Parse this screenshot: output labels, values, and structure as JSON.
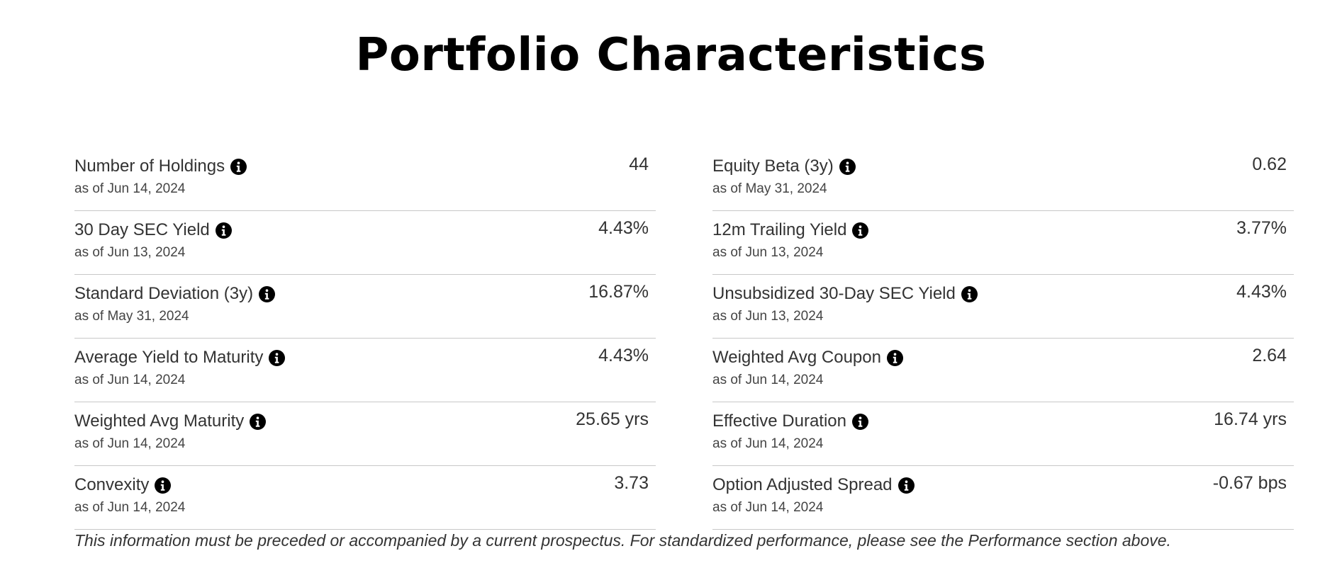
{
  "title": "Portfolio Characteristics",
  "info_icon": "info-circle-icon",
  "left": [
    {
      "label": "Number of Holdings",
      "date": "as of Jun 14, 2024",
      "value": "44"
    },
    {
      "label": "30 Day SEC Yield",
      "date": "as of Jun 13, 2024",
      "value": "4.43%"
    },
    {
      "label": "Standard Deviation (3y)",
      "date": "as of May 31, 2024",
      "value": "16.87%"
    },
    {
      "label": "Average Yield to Maturity",
      "date": "as of Jun 14, 2024",
      "value": "4.43%"
    },
    {
      "label": "Weighted Avg Maturity",
      "date": "as of Jun 14, 2024",
      "value": "25.65 yrs"
    },
    {
      "label": "Convexity",
      "date": "as of Jun 14, 2024",
      "value": "3.73"
    }
  ],
  "right": [
    {
      "label": "Equity Beta (3y)",
      "date": "as of May 31, 2024",
      "value": "0.62"
    },
    {
      "label": "12m Trailing Yield",
      "date": "as of Jun 13, 2024",
      "value": "3.77%"
    },
    {
      "label": "Unsubsidized 30-Day SEC Yield",
      "date": "as of Jun 13, 2024",
      "value": "4.43%"
    },
    {
      "label": "Weighted Avg Coupon",
      "date": "as of Jun 14, 2024",
      "value": "2.64"
    },
    {
      "label": "Effective Duration",
      "date": "as of Jun 14, 2024",
      "value": "16.74 yrs"
    },
    {
      "label": "Option Adjusted Spread",
      "date": "as of Jun 14, 2024",
      "value": "-0.67 bps"
    }
  ],
  "disclaimer": "This information must be preceded or accompanied by a current prospectus. For standardized performance, please see the Performance section above."
}
